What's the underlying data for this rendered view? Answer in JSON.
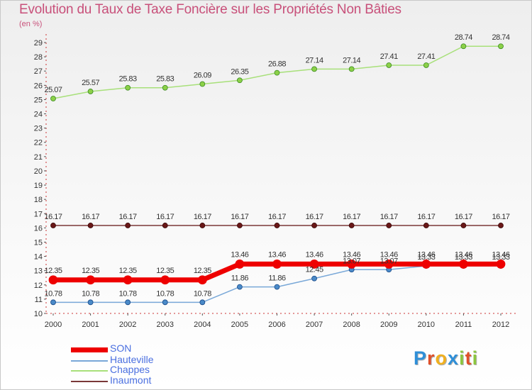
{
  "header": {
    "title": "Evolution du Taux de Taxe Foncière sur les Propriétés Non Bâties",
    "unit": "(en %)"
  },
  "logo": {
    "letters": [
      "P",
      "r",
      "o",
      "x",
      "i",
      "t",
      "i"
    ],
    "colors": [
      "#2f8fd8",
      "#e0502a",
      "#f0b020",
      "#2f8fd8",
      "#8cc63f",
      "#e0502a",
      "#8cc63f"
    ]
  },
  "chart_data": {
    "type": "line",
    "title": "Evolution du Taux de Taxe Foncière sur les Propriétés Non Bâties",
    "ylabel": "(en %)",
    "x": [
      "2000",
      "2001",
      "2002",
      "2003",
      "2004",
      "2005",
      "2006",
      "2007",
      "2008",
      "2009",
      "2010",
      "2011",
      "2012"
    ],
    "ylim": [
      10,
      29
    ],
    "yticks": [
      10,
      11,
      12,
      13,
      14,
      15,
      16,
      17,
      18,
      19,
      20,
      21,
      22,
      23,
      24,
      25,
      26,
      27,
      28,
      29
    ],
    "series": [
      {
        "name": "SON",
        "color": "#ee0000",
        "values": [
          12.35,
          12.35,
          12.35,
          12.35,
          12.35,
          13.46,
          13.46,
          13.46,
          13.46,
          13.46,
          13.46,
          13.46,
          13.46
        ]
      },
      {
        "name": "Hauteville",
        "color": "#79a8d8",
        "values": [
          10.78,
          10.78,
          10.78,
          10.78,
          10.78,
          11.86,
          11.86,
          12.45,
          13.07,
          13.07,
          13.33,
          13.33,
          13.33
        ]
      },
      {
        "name": "Chappes",
        "color": "#a8e07a",
        "values": [
          25.07,
          25.57,
          25.83,
          25.83,
          26.09,
          26.35,
          26.88,
          27.14,
          27.14,
          27.41,
          27.41,
          28.74,
          28.74
        ]
      },
      {
        "name": "Inaumont",
        "color": "#7a3838",
        "values": [
          16.17,
          16.17,
          16.17,
          16.17,
          16.17,
          16.17,
          16.17,
          16.17,
          16.17,
          16.17,
          16.17,
          16.17,
          16.17
        ]
      }
    ],
    "labels": {
      "SON": [
        "12.35",
        "12.35",
        "12.35",
        "12.35",
        "12.35",
        "13.46",
        "13.46",
        "13.46",
        "13.46",
        "13.46",
        "13.46",
        "13.46",
        "13.46"
      ],
      "Hauteville": [
        "10.78",
        "10.78",
        "10.78",
        "10.78",
        "10.78",
        "11.86",
        "11.86",
        "12.45",
        "13.07",
        "13.07",
        "13.33",
        "13.33",
        "13.33"
      ],
      "Chappes": [
        "25.07",
        "25.57",
        "25.83",
        "25.83",
        "26.09",
        "26.35",
        "26.88",
        "27.14",
        "27.14",
        "27.41",
        "27.41",
        "28.74",
        "28.74"
      ],
      "Inaumont": [
        "16.17",
        "16.17",
        "16.17",
        "16.17",
        "16.17",
        "16.17",
        "16.17",
        "16.17",
        "16.17",
        "16.17",
        "16.17",
        "16.17",
        "16.17"
      ]
    },
    "legend": [
      "SON",
      "Hauteville",
      "Chappes",
      "Inaumont"
    ],
    "legend_position": "bottom-left",
    "grid": false
  }
}
